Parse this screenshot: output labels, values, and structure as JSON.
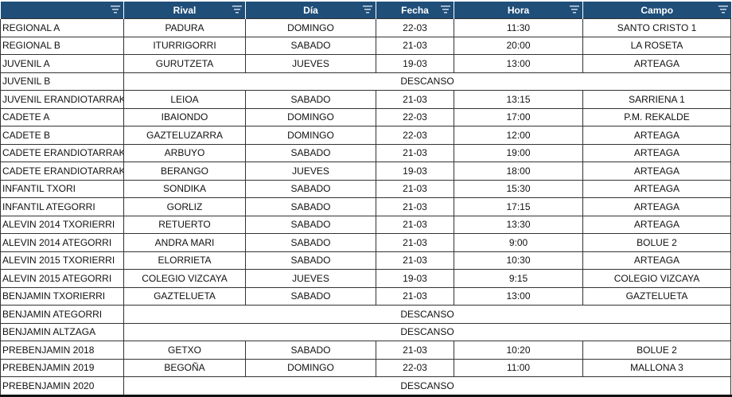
{
  "table": {
    "header": [
      "Rival",
      "Día",
      "Fecha",
      "Hora",
      "Campo"
    ],
    "rows": [
      [
        "REGIONAL A",
        "PADURA",
        "DOMINGO",
        "22-03",
        "11:30",
        "SANTO CRISTO 1"
      ],
      [
        "REGIONAL B",
        "ITURRIGORRI",
        "SABADO",
        "21-03",
        "20:00",
        "LA ROSETA"
      ],
      [
        "JUVENIL A",
        "GURUTZETA",
        "JUEVES",
        "19-03",
        "13:00",
        "ARTEAGA"
      ],
      [
        "JUVENIL B",
        "DESCANSO"
      ],
      [
        "JUVENIL ERANDIOTARRAK",
        "LEIOA",
        "SABADO",
        "21-03",
        "13:15",
        "SARRIENA 1"
      ],
      [
        "CADETE A",
        "IBAIONDO",
        "DOMINGO",
        "22-03",
        "17:00",
        "P.M. REKALDE"
      ],
      [
        "CADETE B",
        "GAZTELUZARRA",
        "DOMINGO",
        "22-03",
        "12:00",
        "ARTEAGA"
      ],
      [
        "CADETE ERANDIOTARRAK",
        "ARBUYO",
        "SABADO",
        "21-03",
        "19:00",
        "ARTEAGA"
      ],
      [
        "CADETE ERANDIOTARRAK",
        "BERANGO",
        "JUEVES",
        "19-03",
        "18:00",
        "ARTEAGA"
      ],
      [
        "INFANTIL TXORI",
        "SONDIKA",
        "SABADO",
        "21-03",
        "15:30",
        "ARTEAGA"
      ],
      [
        "INFANTIL ATEGORRI",
        "GORLIZ",
        "SABADO",
        "21-03",
        "17:15",
        "ARTEAGA"
      ],
      [
        "ALEVIN 2014 TXORIERRI",
        "RETUERTO",
        "SABADO",
        "21-03",
        "13:30",
        "ARTEAGA"
      ],
      [
        "ALEVIN 2014 ATEGORRI",
        "ANDRA MARI",
        "SABADO",
        "21-03",
        "9:00",
        "BOLUE 2"
      ],
      [
        "ALEVIN 2015 TXORIERRI",
        "ELORRIETA",
        "SABADO",
        "21-03",
        "10:30",
        "ARTEAGA"
      ],
      [
        "ALEVIN 2015 ATEGORRI",
        "COLEGIO VIZCAYA",
        "JUEVES",
        "19-03",
        "9:15",
        "COLEGIO VIZCAYA"
      ],
      [
        "BENJAMIN TXORIERRI",
        "GAZTELUETA",
        "SABADO",
        "21-03",
        "13:00",
        "GAZTELUETA"
      ],
      [
        "BENJAMIN ATEGORRI",
        "DESCANSO"
      ],
      [
        "BENJAMIN ALTZAGA",
        "DESCANSO"
      ],
      [
        "PREBENJAMIN 2018",
        "GETXO",
        "SABADO",
        "21-03",
        "10:20",
        "BOLUE 2"
      ],
      [
        "PREBENJAMIN 2019",
        "BEGOÑA",
        "DOMINGO",
        "22-03",
        "11:00",
        "MALLONA 3"
      ],
      [
        "PREBENJAMIN 2020",
        "DESCANSO"
      ]
    ]
  }
}
